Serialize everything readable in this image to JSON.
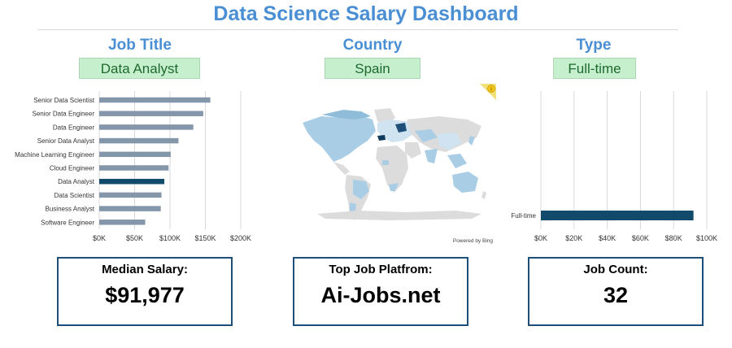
{
  "dashboard": {
    "title": "Data Science Salary Dashboard"
  },
  "filters": [
    {
      "heading": "Job Title",
      "selected": "Data Analyst"
    },
    {
      "heading": "Country",
      "selected": "Spain"
    },
    {
      "heading": "Type",
      "selected": "Full-time"
    }
  ],
  "map": {
    "attribution": "Powered by Bing",
    "info_icon": "info-icon",
    "highlight_color": "#0e3a5c"
  },
  "kpis": [
    {
      "label": "Median Salary:",
      "value": "$91,977"
    },
    {
      "label": "Top Job Platfrom:",
      "value": "Ai-Jobs.net"
    },
    {
      "label": "Job Count:",
      "value": "32"
    }
  ],
  "colors": {
    "accent": "#4a8fd4",
    "bar": "#8497aa",
    "bar_highlight": "#124a6b",
    "slicer_bg": "#c6efce",
    "kpi_border": "#1f4e79"
  },
  "chart_data": [
    {
      "type": "bar",
      "orientation": "horizontal",
      "categories": [
        "Senior Data Scientist",
        "Senior Data Engineer",
        "Data Engineer",
        "Senior Data Analyst",
        "Machine Learning Engineer",
        "Cloud Engineer",
        "Data Analyst",
        "Data Scientist",
        "Business Analyst",
        "Software Engineer"
      ],
      "values": [
        157000,
        147000,
        133000,
        112000,
        101000,
        98000,
        92000,
        88000,
        87000,
        65000
      ],
      "highlight": "Data Analyst",
      "xlim": [
        0,
        200000
      ],
      "xticks": [
        "$0K",
        "$50K",
        "$100K",
        "$150K",
        "$200K"
      ],
      "grid": true
    },
    {
      "type": "bar",
      "orientation": "horizontal",
      "categories": [
        "Full-time"
      ],
      "values": [
        91977
      ],
      "xlim": [
        0,
        100000
      ],
      "xticks": [
        "$0K",
        "$20K",
        "$40K",
        "$60K",
        "$80K",
        "$100K"
      ],
      "grid": true
    }
  ]
}
